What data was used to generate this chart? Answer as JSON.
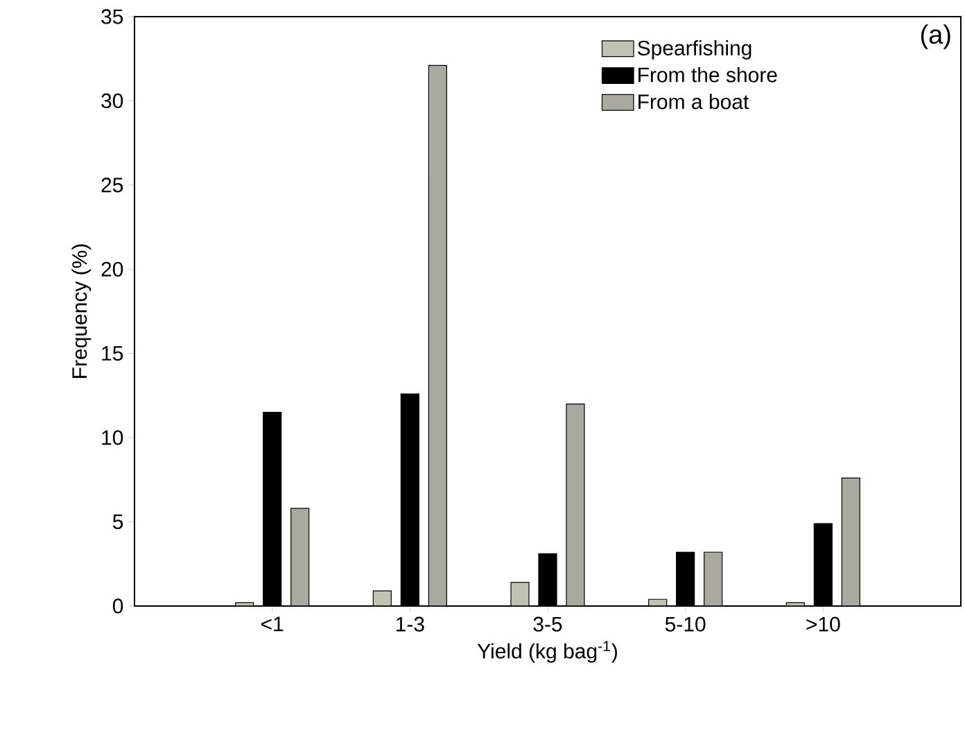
{
  "chart_data": {
    "type": "bar",
    "xlabel": "Yield (kg bag$^{-1}$)",
    "ylabel": "Frequency (%)",
    "categories": [
      "<1",
      "1-3",
      "3-5",
      "5-10",
      ">10"
    ],
    "series": [
      {
        "name": "Spearfishing",
        "color": "#c0c2b2",
        "values": [
          0.2,
          0.9,
          1.4,
          0.4,
          0.2
        ]
      },
      {
        "name": "From the shore",
        "color": "#000000",
        "values": [
          11.5,
          12.6,
          3.1,
          3.2,
          4.9
        ]
      },
      {
        "name": "From a boat",
        "color": "#a9a9a0",
        "values": [
          5.8,
          32.1,
          12.0,
          3.2,
          7.6
        ]
      }
    ],
    "ylim": [
      0,
      35
    ],
    "yticks": [
      0,
      5,
      10,
      15,
      20,
      25,
      30,
      35
    ],
    "legend": "top right",
    "grid": false,
    "annotations": [
      "(a)"
    ]
  }
}
